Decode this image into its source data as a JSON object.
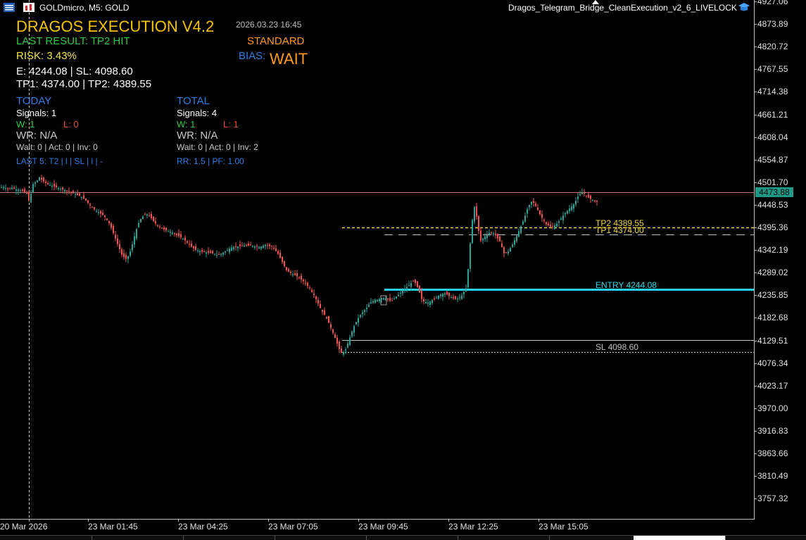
{
  "topbar": {
    "symbol_label": "GOLDmicro, M5:  GOLD",
    "ea_name": "Dragos_Telegram_Bridge_CleanExecution_v2_6_LIVELOCK",
    "menu_icon": "list-icon",
    "chart_icon": "chart-type-icon",
    "ea_icon": "graduation-cap-icon"
  },
  "hud": {
    "title": "DRAGOS EXECUTION V4.2",
    "timestamp": "2026.03.23 16:45",
    "last_result": "LAST RESULT: TP2 HIT",
    "mode": "STANDARD",
    "risk": "RISK: 3.43%",
    "bias_label": "BIAS:",
    "bias_value": "WAIT",
    "levels_line1": "E: 4244.08  |  SL: 4098.60",
    "levels_line2": "TP1: 4374.00  |  TP2: 4389.55",
    "today": {
      "header": "TODAY",
      "signals": "Signals: 1",
      "wins": "W: 1",
      "losses": "L: 0",
      "wr": "WR: N/A",
      "states": "Wait: 0 | Act: 0 | Inv: 0",
      "last5": "LAST 5: T2 | l | SL | l | -"
    },
    "total": {
      "header": "TOTAL",
      "signals": "Signals: 4",
      "wins": "W: 1",
      "losses": "L: 1",
      "wr": "WR: N/A",
      "states": "Wait: 0 | Act: 0 | Inv: 2",
      "rr_pf": "RR: 1.5 | PF: 1.00"
    },
    "colors": {
      "title": "#f5c400",
      "green": "#2ecc40",
      "orange": "#ff9a1a",
      "yellow": "#f5e642",
      "blue": "#2f7ee6",
      "red": "#e8502a",
      "gray": "#c8c8c8"
    }
  },
  "levels": {
    "tp2_label": "TP2 4389.55",
    "tp1_label": "TP1 4374.00",
    "entry_label": "ENTRY 4244.08",
    "sl_label": "SL 4098.60",
    "current_price": "4473.88"
  },
  "price_axis": [
    "4927.06",
    "4873.89",
    "4820.72",
    "4767.55",
    "4714.38",
    "4661.21",
    "4608.04",
    "4554.87",
    "4501.70",
    "4448.53",
    "4395.36",
    "4342.19",
    "4289.02",
    "4235.85",
    "4182.68",
    "4129.51",
    "4076.34",
    "4023.17",
    "3970.00",
    "3916.83",
    "3863.66",
    "3810.49",
    "3757.32"
  ],
  "time_axis": [
    "20 Mar 2026",
    "23 Mar 01:45",
    "23 Mar 04:25",
    "23 Mar 07:05",
    "23 Mar 09:45",
    "23 Mar 12:25",
    "23 Mar 15:05"
  ],
  "chart_data": {
    "type": "candlestick",
    "x_labels": [
      "20 Mar 2026",
      "23 Mar 01:45",
      "23 Mar 04:25",
      "23 Mar 07:05",
      "23 Mar 09:45",
      "23 Mar 12:25",
      "23 Mar 15:05"
    ],
    "y_range": [
      3730,
      4945
    ],
    "path": [
      [
        0,
        4505
      ],
      [
        6,
        4508
      ],
      [
        12,
        4503
      ],
      [
        18,
        4506
      ],
      [
        24,
        4502
      ],
      [
        30,
        4500
      ],
      [
        36,
        4496
      ],
      [
        40,
        4492
      ],
      [
        44,
        4470
      ],
      [
        48,
        4512
      ],
      [
        54,
        4520
      ],
      [
        58,
        4530
      ],
      [
        62,
        4522
      ],
      [
        66,
        4518
      ],
      [
        72,
        4512
      ],
      [
        80,
        4508
      ],
      [
        90,
        4502
      ],
      [
        100,
        4496
      ],
      [
        110,
        4490
      ],
      [
        118,
        4484
      ],
      [
        124,
        4476
      ],
      [
        132,
        4460
      ],
      [
        140,
        4450
      ],
      [
        150,
        4440
      ],
      [
        158,
        4420
      ],
      [
        164,
        4395
      ],
      [
        170,
        4370
      ],
      [
        176,
        4345
      ],
      [
        182,
        4338
      ],
      [
        188,
        4360
      ],
      [
        194,
        4398
      ],
      [
        200,
        4428
      ],
      [
        206,
        4440
      ],
      [
        212,
        4444
      ],
      [
        218,
        4432
      ],
      [
        224,
        4420
      ],
      [
        232,
        4410
      ],
      [
        240,
        4404
      ],
      [
        248,
        4400
      ],
      [
        256,
        4392
      ],
      [
        264,
        4384
      ],
      [
        272,
        4370
      ],
      [
        280,
        4360
      ],
      [
        288,
        4356
      ],
      [
        296,
        4354
      ],
      [
        304,
        4352
      ],
      [
        312,
        4348
      ],
      [
        320,
        4354
      ],
      [
        330,
        4365
      ],
      [
        340,
        4368
      ],
      [
        350,
        4370
      ],
      [
        360,
        4370
      ],
      [
        370,
        4366
      ],
      [
        380,
        4372
      ],
      [
        390,
        4366
      ],
      [
        398,
        4348
      ],
      [
        404,
        4328
      ],
      [
        410,
        4310
      ],
      [
        418,
        4303
      ],
      [
        426,
        4296
      ],
      [
        434,
        4285
      ],
      [
        442,
        4270
      ],
      [
        450,
        4248
      ],
      [
        458,
        4220
      ],
      [
        466,
        4200
      ],
      [
        474,
        4170
      ],
      [
        480,
        4145
      ],
      [
        486,
        4118
      ],
      [
        492,
        4122
      ],
      [
        498,
        4150
      ],
      [
        504,
        4178
      ],
      [
        510,
        4198
      ],
      [
        516,
        4212
      ],
      [
        522,
        4222
      ],
      [
        528,
        4236
      ],
      [
        534,
        4242
      ],
      [
        540,
        4244
      ],
      [
        546,
        4248
      ],
      [
        552,
        4245
      ],
      [
        558,
        4240
      ],
      [
        566,
        4252
      ],
      [
        574,
        4264
      ],
      [
        582,
        4276
      ],
      [
        590,
        4288
      ],
      [
        596,
        4270
      ],
      [
        602,
        4240
      ],
      [
        610,
        4236
      ],
      [
        618,
        4244
      ],
      [
        626,
        4254
      ],
      [
        634,
        4258
      ],
      [
        642,
        4250
      ],
      [
        650,
        4244
      ],
      [
        658,
        4252
      ],
      [
        664,
        4270
      ],
      [
        668,
        4330
      ],
      [
        672,
        4420
      ],
      [
        676,
        4460
      ],
      [
        680,
        4430
      ],
      [
        684,
        4380
      ],
      [
        690,
        4390
      ],
      [
        696,
        4400
      ],
      [
        704,
        4398
      ],
      [
        712,
        4380
      ],
      [
        718,
        4352
      ],
      [
        724,
        4356
      ],
      [
        730,
        4372
      ],
      [
        738,
        4400
      ],
      [
        746,
        4430
      ],
      [
        752,
        4460
      ],
      [
        758,
        4475
      ],
      [
        764,
        4460
      ],
      [
        770,
        4440
      ],
      [
        778,
        4420
      ],
      [
        786,
        4412
      ],
      [
        794,
        4422
      ],
      [
        802,
        4440
      ],
      [
        810,
        4455
      ],
      [
        818,
        4468
      ],
      [
        824,
        4488
      ],
      [
        830,
        4495
      ],
      [
        836,
        4485
      ],
      [
        842,
        4478
      ],
      [
        848,
        4473
      ]
    ]
  }
}
